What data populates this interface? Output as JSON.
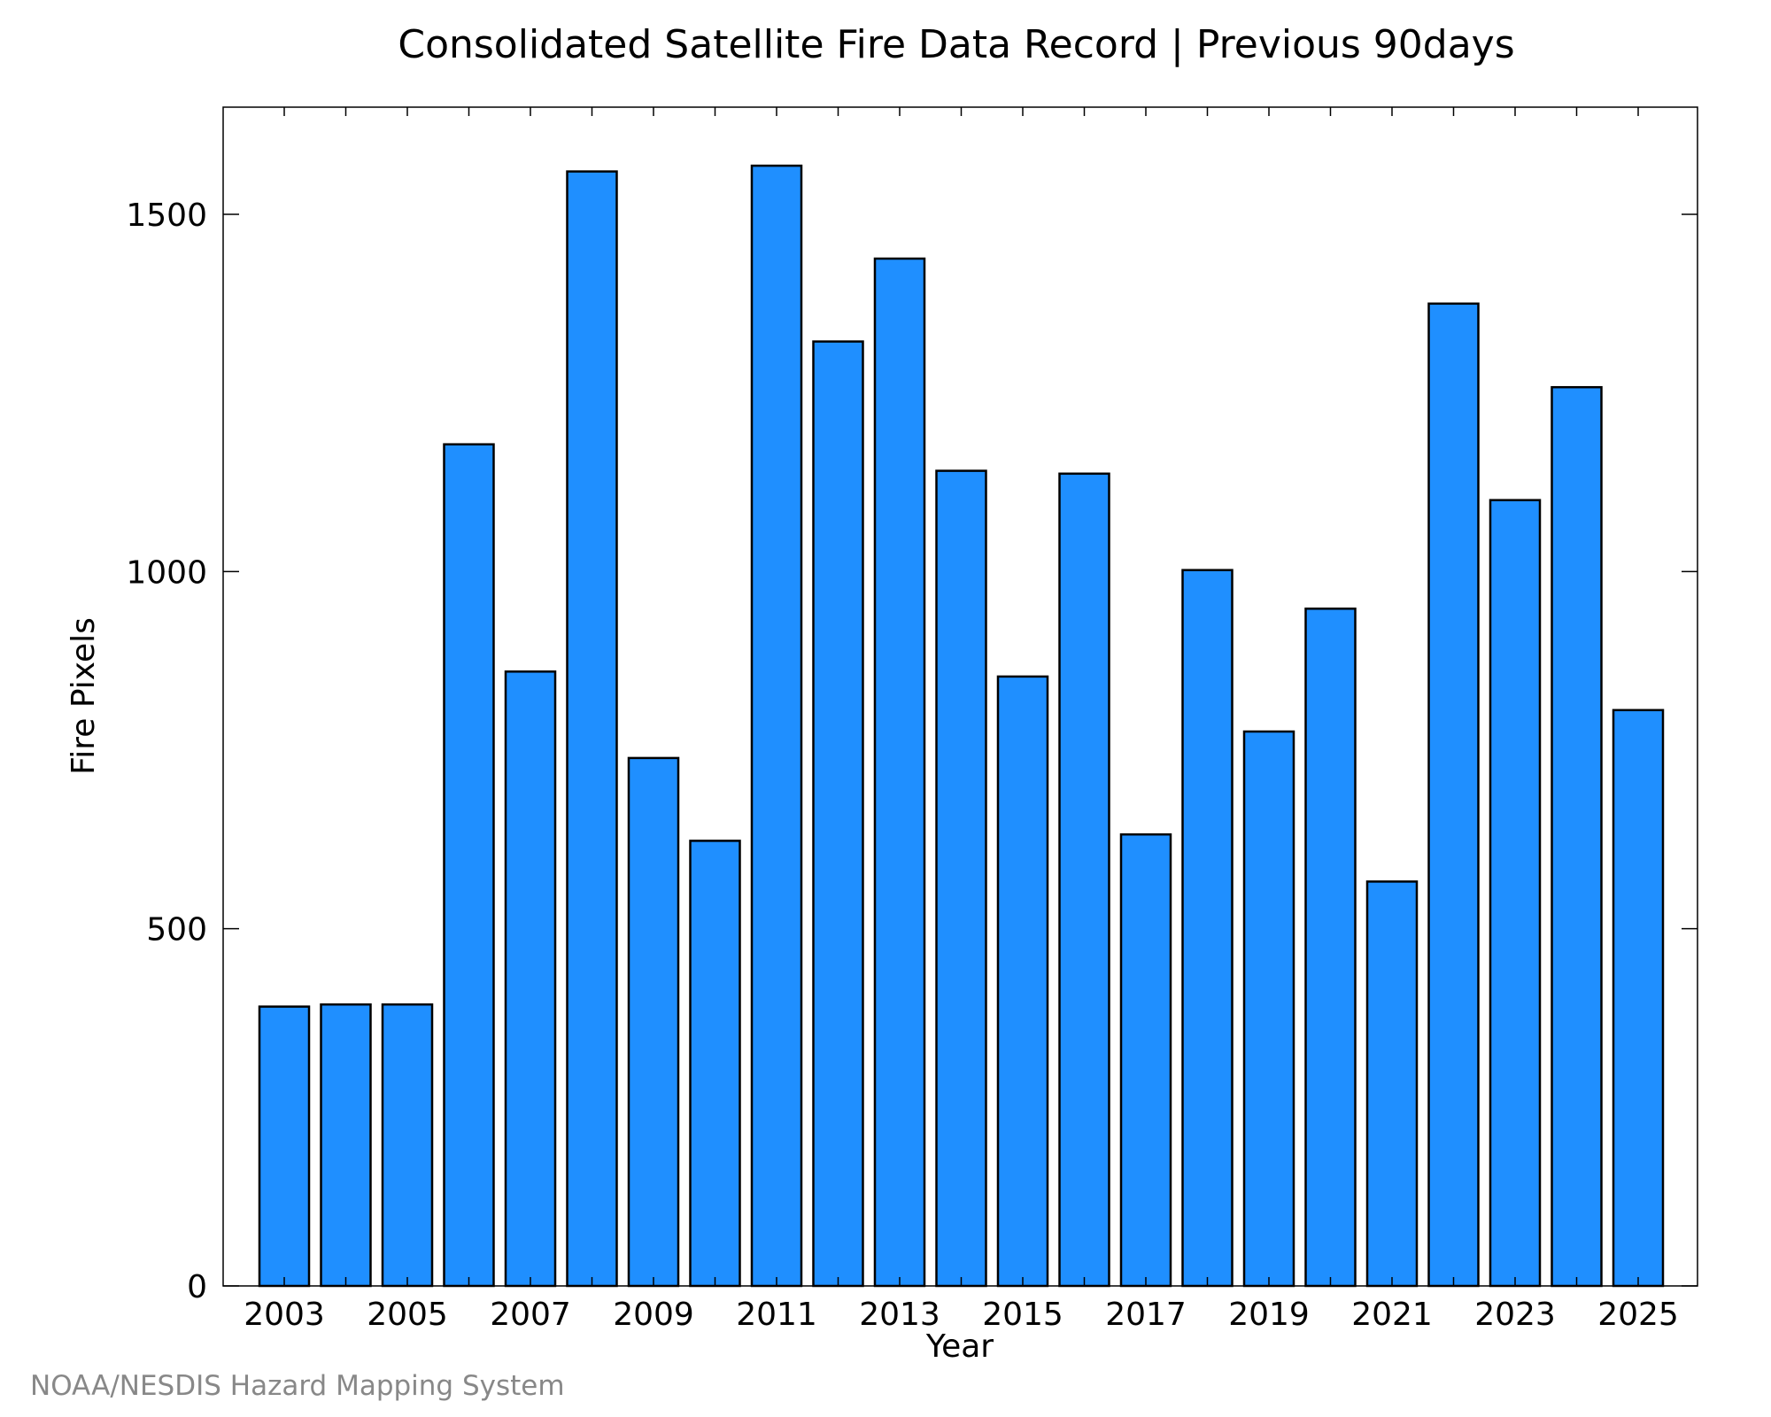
{
  "chart_data": {
    "type": "bar",
    "title": "Consolidated Satellite Fire Data Record | Previous 90days",
    "xlabel": "Year",
    "ylabel": "Fire Pixels",
    "credit": "NOAA/NESDIS Hazard Mapping System",
    "categories": [
      "2003",
      "2004",
      "2005",
      "2006",
      "2007",
      "2008",
      "2009",
      "2010",
      "2011",
      "2012",
      "2013",
      "2014",
      "2015",
      "2016",
      "2017",
      "2018",
      "2019",
      "2020",
      "2021",
      "2022",
      "2023",
      "2024",
      "2025"
    ],
    "values": [
      391,
      394,
      394,
      1178,
      860,
      1560,
      739,
      623,
      1568,
      1322,
      1438,
      1141,
      853,
      1137,
      632,
      1002,
      776,
      948,
      566,
      1375,
      1100,
      1258,
      806
    ],
    "x_tick_labels": [
      "2003",
      "2005",
      "2007",
      "2009",
      "2011",
      "2013",
      "2015",
      "2017",
      "2019",
      "2021",
      "2023",
      "2025"
    ],
    "y_ticks": [
      0,
      500,
      1000,
      1500
    ],
    "ylim": [
      0,
      1650
    ],
    "bar_color": "#1f8fff",
    "grid": false,
    "legend": "none"
  }
}
